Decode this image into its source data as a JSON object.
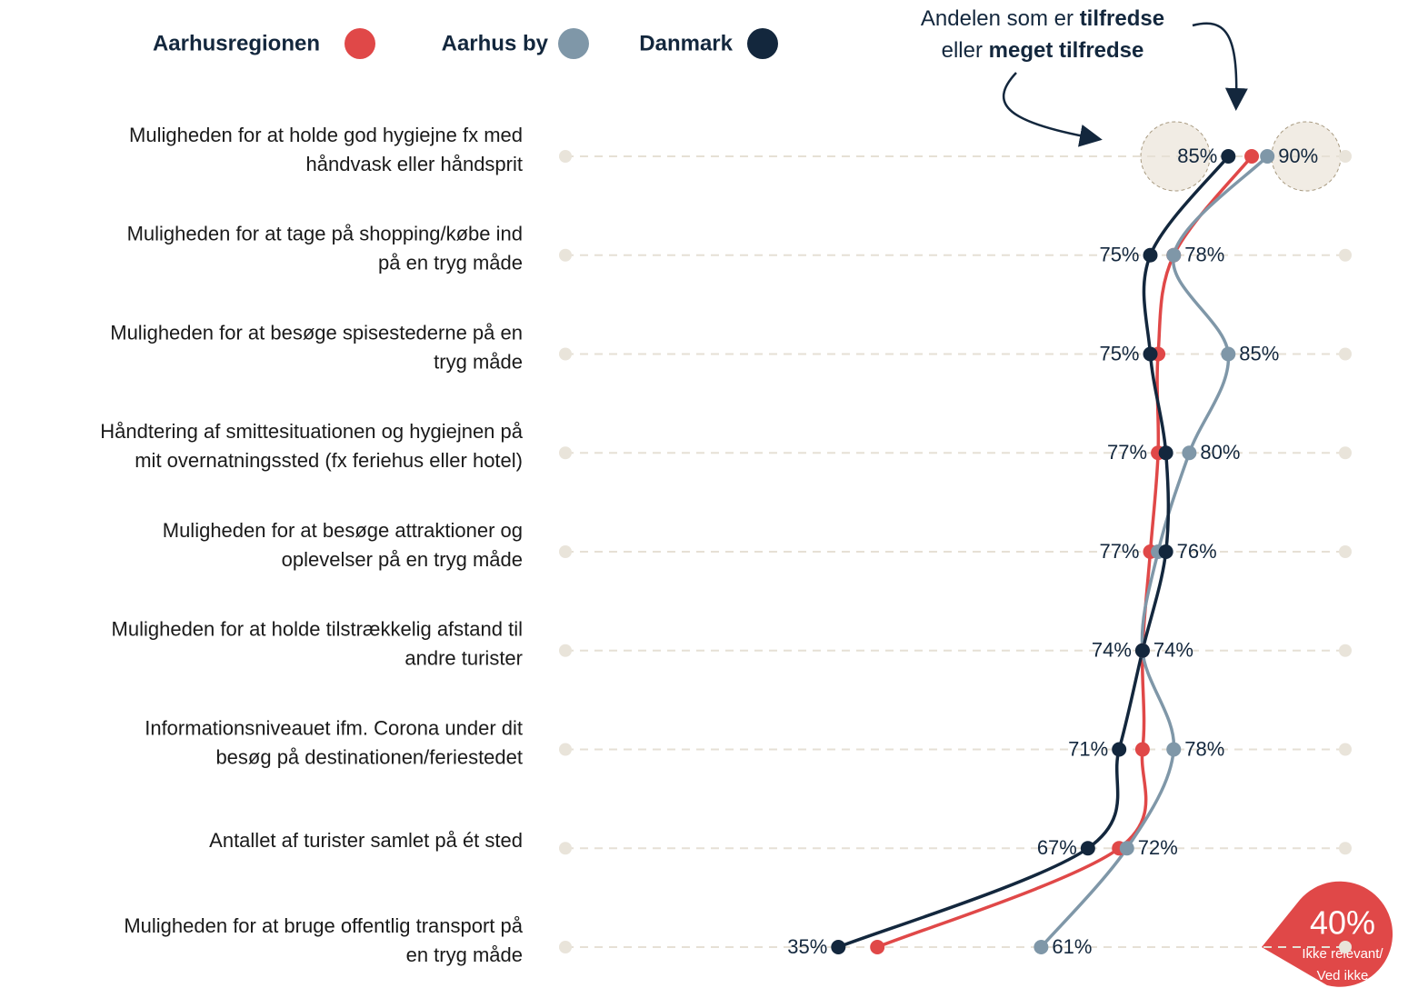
{
  "chart_data": {
    "type": "dot-line",
    "orientation": "horizontal",
    "categories": [
      [
        "Muligheden for at holde god hygiejne fx med",
        "håndvask eller håndsprit"
      ],
      [
        "Muligheden for at tage på shopping/købe ind",
        "på en tryg måde"
      ],
      [
        "Muligheden for at besøge spisestederne på en",
        "tryg måde"
      ],
      [
        "Håndtering af smittesituationen og hygiejnen på",
        "mit overnatningssted (fx feriehus eller hotel)"
      ],
      [
        "Muligheden for at besøge attraktioner og",
        "oplevelser på en tryg måde"
      ],
      [
        "Muligheden for at holde tilstrækkelig afstand til",
        "andre turister"
      ],
      [
        "Informationsniveauet ifm. Corona under dit",
        "besøg på destinationen/feriestedet"
      ],
      [
        "Antallet af turister samlet på ét sted"
      ],
      [
        "Muligheden for at bruge offentlig transport på",
        "en tryg måde"
      ]
    ],
    "series": [
      {
        "name": "Aarhusregionen",
        "color": "#e04848",
        "values": [
          88,
          78,
          76,
          76,
          75,
          74,
          74,
          71,
          40
        ]
      },
      {
        "name": "Aarhus by",
        "color": "#7f97a8",
        "values": [
          90,
          78,
          85,
          80,
          76,
          74,
          78,
          72,
          61
        ],
        "value_labels": [
          "90%",
          "78%",
          "85%",
          "80%",
          "76%",
          "74%",
          "78%",
          "72%",
          "61%"
        ]
      },
      {
        "name": "Danmark",
        "color": "#13273d",
        "values": [
          85,
          75,
          75,
          77,
          77,
          74,
          71,
          67,
          35
        ],
        "value_labels": [
          "85%",
          "75%",
          "75%",
          "77%",
          "77%",
          "74%",
          "71%",
          "67%",
          "35%"
        ]
      }
    ],
    "xlim": [
      0,
      100
    ],
    "annotation": {
      "line1": [
        "Andelen som er ",
        "tilfredse"
      ],
      "line2": [
        "eller ",
        "meget tilfredse"
      ]
    },
    "callout": {
      "value": "40%",
      "lines": [
        "Ikke relevant/",
        "Ved ikke"
      ]
    }
  }
}
